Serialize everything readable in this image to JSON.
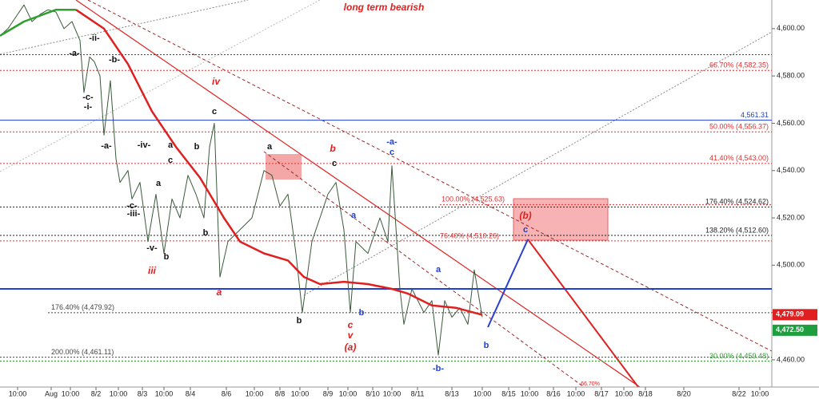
{
  "chart_data": {
    "type": "line",
    "title": "long term bearish",
    "xlim": [
      0,
      96.5
    ],
    "ylim": [
      4448.5,
      4612.1
    ],
    "xticks": [
      {
        "value": 2.2,
        "label": "10:00"
      },
      {
        "value": 6.4,
        "label": "Aug"
      },
      {
        "value": 8.8,
        "label": "10:00"
      },
      {
        "value": 12.0,
        "label": "8/2"
      },
      {
        "value": 14.8,
        "label": "10:00"
      },
      {
        "value": 17.8,
        "label": "8/3"
      },
      {
        "value": 20.5,
        "label": "10:00"
      },
      {
        "value": 23.8,
        "label": "8/4"
      },
      {
        "value": 28.3,
        "label": "8/6"
      },
      {
        "value": 31.8,
        "label": "10:00"
      },
      {
        "value": 35.0,
        "label": "8/8"
      },
      {
        "value": 37.5,
        "label": "10:00"
      },
      {
        "value": 41.0,
        "label": "8/9"
      },
      {
        "value": 43.5,
        "label": "10:00"
      },
      {
        "value": 46.6,
        "label": "8/10"
      },
      {
        "value": 49.0,
        "label": "10:00"
      },
      {
        "value": 52.2,
        "label": "8/11"
      },
      {
        "value": 56.5,
        "label": "8/13"
      },
      {
        "value": 60.3,
        "label": "10:00"
      },
      {
        "value": 63.6,
        "label": "8/15"
      },
      {
        "value": 66.2,
        "label": "10:00"
      },
      {
        "value": 69.2,
        "label": "8/16"
      },
      {
        "value": 72.0,
        "label": "10:00"
      },
      {
        "value": 75.2,
        "label": "8/17"
      },
      {
        "value": 78.0,
        "label": "10:00"
      },
      {
        "value": 80.7,
        "label": "8/18"
      },
      {
        "value": 85.5,
        "label": "8/20"
      },
      {
        "value": 92.4,
        "label": "8/22"
      },
      {
        "value": 95.0,
        "label": "10:00"
      }
    ],
    "yticks": [
      {
        "value": 4460,
        "label": "4,460.00"
      },
      {
        "value": 4480,
        "label": "4,480.00"
      },
      {
        "value": 4500,
        "label": "4,500.00"
      },
      {
        "value": 4520,
        "label": "4,520.00"
      },
      {
        "value": 4540,
        "label": "4,540.00"
      },
      {
        "value": 4560,
        "label": "4,560.00"
      },
      {
        "value": 4580,
        "label": "4,580.00"
      },
      {
        "value": 4600,
        "label": "4,600.00"
      }
    ],
    "series": [
      {
        "color": "#3a5a3a",
        "x": [
          0,
          1,
          2,
          3,
          4,
          5,
          6,
          7,
          8,
          9,
          10,
          10.5,
          11.2,
          11.8,
          12.5,
          13,
          13.8,
          14.5,
          15,
          16,
          16.5,
          17.5,
          18.5,
          19.5,
          20.5,
          21.5,
          22.5,
          23.5,
          24.5,
          25.5,
          26.2,
          26.8,
          27.5,
          28.5,
          30,
          31.5,
          33,
          34,
          35,
          36,
          37,
          37.8,
          39,
          40,
          41,
          42,
          43,
          43.8,
          44.5,
          46,
          47.5,
          48.5,
          49,
          50,
          50.5,
          51.5,
          53,
          54,
          54.8,
          55.6,
          56.5,
          57.5,
          58.5,
          59.3,
          60.3
        ],
        "values": [
          4597,
          4600,
          4605,
          4610,
          4603,
          4606,
          4608,
          4607,
          4600,
          4603,
          4595,
          4573,
          4588,
          4586,
          4580,
          4555,
          4578,
          4545,
          4535,
          4540,
          4528,
          4535,
          4510,
          4530,
          4505,
          4528,
          4520,
          4538,
          4530,
          4520,
          4550,
          4560,
          4495,
          4510,
          4515,
          4520,
          4540,
          4538,
          4525,
          4530,
          4505,
          4480,
          4510,
          4520,
          4530,
          4535,
          4515,
          4480,
          4510,
          4505,
          4520,
          4510,
          4542,
          4490,
          4475,
          4490,
          4480,
          4485,
          4462,
          4485,
          4478,
          4482,
          4475,
          4498,
          4478
        ]
      },
      {
        "color": "#2e9e2e",
        "x": [
          0,
          3,
          7,
          9.5
        ],
        "values": [
          4597,
          4603,
          4608,
          4608
        ]
      },
      {
        "color": "#e02020",
        "x": [
          9.5,
          13,
          16,
          19,
          22,
          25,
          28,
          30,
          33,
          36,
          38,
          40,
          43,
          46,
          49,
          51,
          54,
          57,
          60.3
        ],
        "values": [
          4608,
          4600,
          4585,
          4565,
          4550,
          4537,
          4520,
          4510,
          4505,
          4502,
          4495,
          4492,
          4493,
          4492,
          4490,
          4488,
          4483,
          4482,
          4479
        ]
      }
    ],
    "levels": [
      {
        "value": 4589,
        "color": "#444"
      },
      {
        "value": 4582.35,
        "label": "66.70% (4,582.35)",
        "color": "#e03030"
      },
      {
        "value": 4561.31,
        "label": "4,561.31",
        "color": "#1f3fcf"
      },
      {
        "value": 4556.37,
        "label": "50.00% (4,556.37)",
        "color": "#e03030"
      },
      {
        "value": 4543.0,
        "label": "41.40% (4,543.00)",
        "color": "#e03030"
      },
      {
        "value": 4525.63,
        "label": "100.00% (4,525.63)",
        "color": "#e03030"
      },
      {
        "value": 4524.62,
        "label": "176.40% (4,524.62)",
        "color": "#222"
      },
      {
        "value": 4512.6,
        "label": "138.20% (4,512.60)",
        "color": "#222"
      },
      {
        "value": 4510.26,
        "label": "76.40% (4,510.26)",
        "color": "#e03030"
      },
      {
        "value": 4490,
        "color": "#1f3fcf"
      },
      {
        "value": 4479.92,
        "label": "176.40% (4,479.92)",
        "color": "#444"
      },
      {
        "value": 4461.11,
        "label": "200.00% (4,461.11)",
        "color": "#444"
      },
      {
        "value": 4459.48,
        "label": "30.00% (4,459.48)",
        "color": "#2e9e2e"
      }
    ],
    "price_tags": [
      {
        "value": 4479.09,
        "label": "4,479.09",
        "color": "#e02020"
      },
      {
        "value": 4472.5,
        "label": "4,472.50",
        "color": "#1e9e3e"
      }
    ],
    "annotations": [
      {
        "text": "-a-",
        "color": "#111"
      },
      {
        "text": "-ii-",
        "color": "#111"
      },
      {
        "text": "-b-",
        "color": "#111"
      },
      {
        "text": "-c-",
        "color": "#111"
      },
      {
        "text": "-i-",
        "color": "#111"
      },
      {
        "text": "-a-",
        "color": "#111"
      },
      {
        "text": "-iv-",
        "color": "#111"
      },
      {
        "text": "a",
        "color": "#111"
      },
      {
        "text": "c",
        "color": "#111"
      },
      {
        "text": "b",
        "color": "#111"
      },
      {
        "text": "a",
        "color": "#111"
      },
      {
        "text": "-c-",
        "color": "#111"
      },
      {
        "text": "-iii-",
        "color": "#111"
      },
      {
        "text": "-v-",
        "color": "#111"
      },
      {
        "text": "b",
        "color": "#111"
      },
      {
        "text": "iii",
        "color": "#e02020"
      },
      {
        "text": "b",
        "color": "#111"
      },
      {
        "text": "c",
        "color": "#111"
      },
      {
        "text": "a",
        "color": "#e02020"
      },
      {
        "text": "iv",
        "color": "#e02020"
      },
      {
        "text": "a",
        "color": "#111"
      },
      {
        "text": "c",
        "color": "#111"
      },
      {
        "text": "b",
        "color": "#e02020"
      },
      {
        "text": "b",
        "color": "#111"
      },
      {
        "text": "a",
        "color": "#1f3fcf"
      },
      {
        "text": "b",
        "color": "#1f3fcf"
      },
      {
        "text": "c",
        "color": "#e02020"
      },
      {
        "text": "v",
        "color": "#e02020"
      },
      {
        "text": "(a)",
        "color": "#e02020"
      },
      {
        "text": "-a-",
        "color": "#1f3fcf"
      },
      {
        "text": "c",
        "color": "#1f3fcf"
      },
      {
        "text": "-b-",
        "color": "#1f3fcf"
      },
      {
        "text": "a",
        "color": "#1f3fcf"
      },
      {
        "text": "b",
        "color": "#1f3fcf"
      },
      {
        "text": "(b)",
        "color": "#e02020"
      },
      {
        "text": "c",
        "color": "#1f3fcf"
      },
      {
        "text": "66.70%",
        "color": "#e02020"
      }
    ]
  }
}
